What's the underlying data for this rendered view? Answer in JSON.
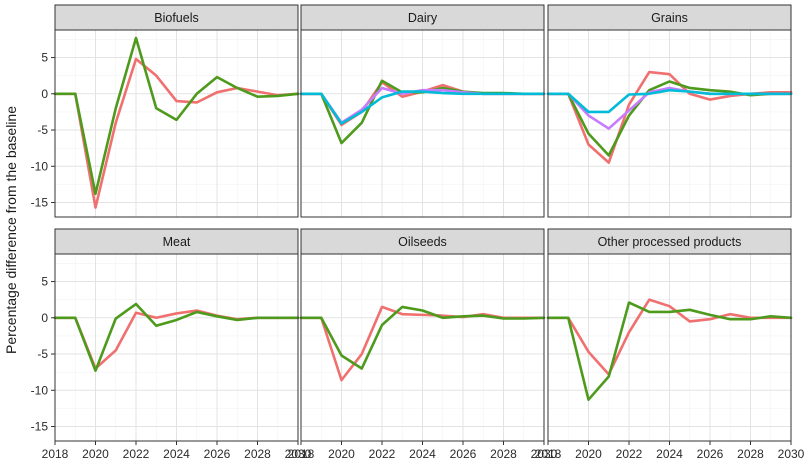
{
  "chart_data": {
    "type": "line",
    "layout": "facet-grid",
    "ylabel": "Percentage difference from the baseline",
    "xlabel": "",
    "xlim": [
      2018,
      2030
    ],
    "ylim": [
      -17,
      8.8
    ],
    "x_ticks": [
      "2018",
      "2020",
      "2022",
      "2024",
      "2026",
      "2028",
      "2030"
    ],
    "y_ticks": [
      "5",
      "0",
      "-5",
      "-10",
      "-15"
    ],
    "x": [
      2018,
      2019,
      2020,
      2021,
      2022,
      2023,
      2024,
      2025,
      2026,
      2027,
      2028,
      2029,
      2030
    ],
    "grid": true,
    "legend": "none",
    "colors": {
      "red": "#f07070",
      "green": "#4d9a1c",
      "purple": "#c77cff",
      "cyan": "#00bcd6"
    },
    "panels": [
      {
        "title": "Biofuels",
        "series": [
          {
            "color": "red",
            "values": [
              0,
              0,
              -15.7,
              -4,
              4.8,
              2.5,
              -1,
              -1.2,
              0.2,
              0.8,
              0.3,
              -0.2,
              0
            ]
          },
          {
            "color": "green",
            "values": [
              0,
              0,
              -13.8,
              -2,
              7.7,
              -2,
              -3.6,
              0,
              2.3,
              0.8,
              -0.4,
              -0.3,
              0
            ]
          }
        ]
      },
      {
        "title": "Dairy",
        "series": [
          {
            "color": "red",
            "values": [
              0,
              0,
              -4.3,
              -2.5,
              1.6,
              -0.4,
              0.3,
              1.2,
              0.3,
              0,
              0,
              0,
              0
            ]
          },
          {
            "color": "green",
            "values": [
              0,
              0,
              -6.8,
              -4,
              1.8,
              0.2,
              0.2,
              0.8,
              0.3,
              0.1,
              0.1,
              0,
              0
            ]
          },
          {
            "color": "purple",
            "values": [
              0,
              0,
              -4,
              -2.2,
              0.8,
              0,
              0.5,
              0.5,
              0.2,
              0,
              0,
              0,
              0
            ]
          },
          {
            "color": "cyan",
            "values": [
              0,
              0,
              -4.1,
              -2.5,
              -0.5,
              0.3,
              0.3,
              0.1,
              0,
              0,
              0,
              0,
              0
            ]
          }
        ]
      },
      {
        "title": "Grains",
        "series": [
          {
            "color": "red",
            "values": [
              0,
              0,
              -7,
              -9.5,
              -1.5,
              3,
              2.7,
              0,
              -0.8,
              -0.3,
              0,
              0.2,
              0.2
            ]
          },
          {
            "color": "green",
            "values": [
              0,
              0,
              -5.5,
              -8.5,
              -3,
              0.5,
              1.7,
              0.8,
              0.5,
              0.3,
              -0.2,
              0,
              0
            ]
          },
          {
            "color": "purple",
            "values": [
              0,
              0,
              -3,
              -4.8,
              -2.3,
              0.2,
              0.8,
              0.3,
              0,
              0,
              0,
              0,
              0
            ]
          },
          {
            "color": "cyan",
            "values": [
              0,
              0,
              -2.5,
              -2.5,
              -0.1,
              0,
              0.5,
              0.3,
              0,
              0,
              0,
              0,
              0
            ]
          }
        ]
      },
      {
        "title": "Meat",
        "series": [
          {
            "color": "red",
            "values": [
              0,
              0,
              -7,
              -4.5,
              0.7,
              0,
              0.6,
              1,
              0.3,
              -0.2,
              0,
              0,
              0
            ]
          },
          {
            "color": "green",
            "values": [
              0,
              0,
              -7.3,
              -0.1,
              1.9,
              -1.1,
              -0.3,
              0.8,
              0.2,
              -0.3,
              0,
              0,
              0
            ]
          }
        ]
      },
      {
        "title": "Oilseeds",
        "series": [
          {
            "color": "red",
            "values": [
              0,
              0,
              -8.6,
              -5,
              1.5,
              0.5,
              0.4,
              0.3,
              0.1,
              0.5,
              0,
              0,
              0
            ]
          },
          {
            "color": "green",
            "values": [
              0,
              0,
              -5.2,
              -7,
              -1,
              1.5,
              1,
              0,
              0.2,
              0.3,
              -0.1,
              -0.1,
              0
            ]
          }
        ]
      },
      {
        "title": "Other processed products",
        "series": [
          {
            "color": "red",
            "values": [
              0,
              0,
              -4.7,
              -7.8,
              -2,
              2.5,
              1.6,
              -0.5,
              -0.2,
              0.5,
              0,
              0,
              0
            ]
          },
          {
            "color": "green",
            "values": [
              0,
              0,
              -11.3,
              -8.1,
              2.1,
              0.8,
              0.8,
              1.1,
              0.4,
              -0.2,
              -0.2,
              0.2,
              0
            ]
          }
        ]
      }
    ]
  }
}
